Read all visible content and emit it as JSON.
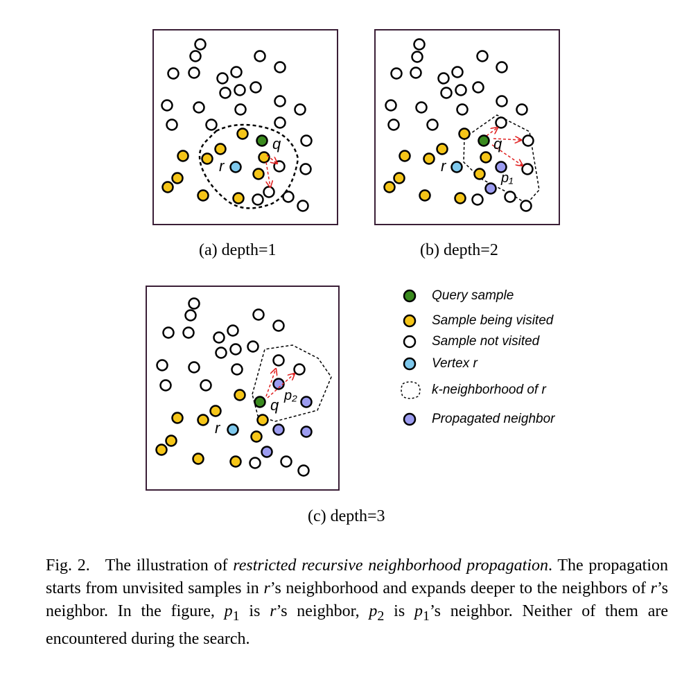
{
  "panels": [
    {
      "id": "a",
      "caption": "(a) depth=1"
    },
    {
      "id": "b",
      "caption": "(b) depth=2"
    },
    {
      "id": "c",
      "caption": "(c) depth=3"
    }
  ],
  "point_labels": {
    "q": "q",
    "r": "r",
    "p1": "p₁",
    "p2": "p₂"
  },
  "legend": [
    {
      "label": "Query sample",
      "icon": "green-filled-circle",
      "color": "#3a8a1e"
    },
    {
      "label": "Sample being visited",
      "icon": "yellow-filled-circle",
      "color": "#f5c518"
    },
    {
      "label": "Sample not visited",
      "icon": "hollow-circle",
      "color": "#ffffff"
    },
    {
      "label": "Vertex r",
      "icon": "blue-filled-circle",
      "color": "#7ec8ec"
    },
    {
      "label": "k-neighborhood of r",
      "icon": "dashed-outline",
      "color": "#000000"
    },
    {
      "label": "Propagated neighbor",
      "icon": "purple-filled-circle",
      "color": "#9c9cf0"
    }
  ],
  "caption": {
    "label": "Fig. 2.",
    "text_1": "The illustration of ",
    "emph": "restricted recursive neighborhood propagation",
    "text_2": ". The propagation starts from unvisited samples in ",
    "r1": "r",
    "text_3": "’s neighborhood and expands deeper to the neighbors of ",
    "r2": "r",
    "text_4": "’s neighbor. In the figure, ",
    "p1": "p",
    "p1_sub": "1",
    "text_5": " is ",
    "r3": "r",
    "text_6": "’s neighbor, ",
    "p2": "p",
    "p2_sub": "2",
    "text_7": " is ",
    "p3": "p",
    "p3_sub": "1",
    "text_8": "’s neighbor. Neither of them are encountered during the search."
  }
}
